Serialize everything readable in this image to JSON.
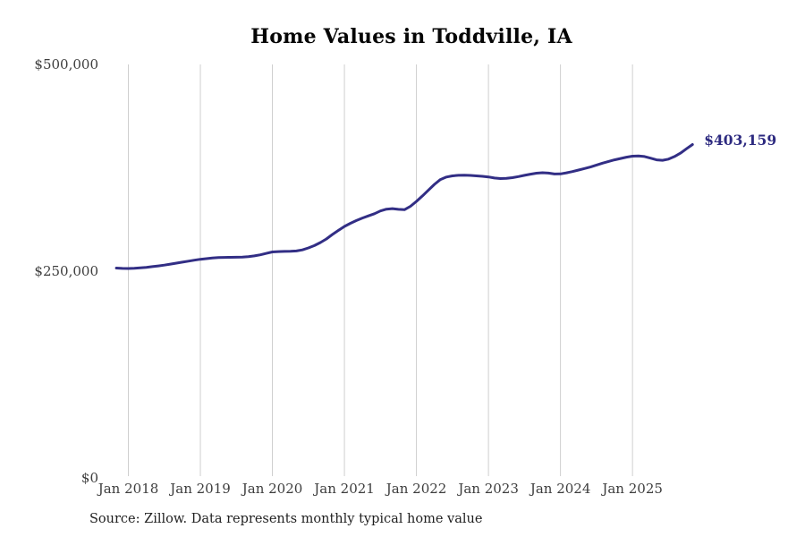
{
  "title": "Home Values in Toddville, IA",
  "source_note": "Source: Zillow. Data represents monthly typical home value",
  "end_label": "$403,159",
  "colors": {
    "background": "#ffffff",
    "line": "#322e85",
    "end_label": "#2d2a80",
    "gridline": "#cfcfcf",
    "axis_text": "#3d3d3d",
    "title_text": "#050505",
    "source_text": "#1f1f1f"
  },
  "chart_data": {
    "type": "line",
    "title": "Home Values in Toddville, IA",
    "xlabel": "",
    "ylabel": "",
    "ylim": [
      0,
      500000
    ],
    "grid": "vertical-only",
    "legend": "none",
    "frequency": "monthly",
    "unit": "USD",
    "last_value": 403159,
    "last_value_label": "$403,159",
    "y_ticks": [
      {
        "value": 0,
        "label": "$0"
      },
      {
        "value": 250000,
        "label": "$250,000"
      },
      {
        "value": 500000,
        "label": "$500,000"
      }
    ],
    "x_ticks": [
      {
        "month": "2018-01",
        "label": "Jan 2018"
      },
      {
        "month": "2019-01",
        "label": "Jan 2019"
      },
      {
        "month": "2020-01",
        "label": "Jan 2020"
      },
      {
        "month": "2021-01",
        "label": "Jan 2021"
      },
      {
        "month": "2022-01",
        "label": "Jan 2022"
      },
      {
        "month": "2023-01",
        "label": "Jan 2023"
      },
      {
        "month": "2024-01",
        "label": "Jan 2024"
      },
      {
        "month": "2025-01",
        "label": "Jan 2025"
      }
    ],
    "months": [
      "2017-11",
      "2017-12",
      "2018-01",
      "2018-02",
      "2018-03",
      "2018-04",
      "2018-05",
      "2018-06",
      "2018-07",
      "2018-08",
      "2018-09",
      "2018-10",
      "2018-11",
      "2018-12",
      "2019-01",
      "2019-02",
      "2019-03",
      "2019-04",
      "2019-05",
      "2019-06",
      "2019-07",
      "2019-08",
      "2019-09",
      "2019-10",
      "2019-11",
      "2019-12",
      "2020-01",
      "2020-02",
      "2020-03",
      "2020-04",
      "2020-05",
      "2020-06",
      "2020-07",
      "2020-08",
      "2020-09",
      "2020-10",
      "2020-11",
      "2020-12",
      "2021-01",
      "2021-02",
      "2021-03",
      "2021-04",
      "2021-05",
      "2021-06",
      "2021-07",
      "2021-08",
      "2021-09",
      "2021-10",
      "2021-11",
      "2021-12",
      "2022-01",
      "2022-02",
      "2022-03",
      "2022-04",
      "2022-05",
      "2022-06",
      "2022-07",
      "2022-08",
      "2022-09",
      "2022-10",
      "2022-11",
      "2022-12",
      "2023-01",
      "2023-02",
      "2023-03",
      "2023-04",
      "2023-05",
      "2023-06",
      "2023-07",
      "2023-08",
      "2023-09",
      "2023-10",
      "2023-11",
      "2023-12",
      "2024-01",
      "2024-02",
      "2024-03",
      "2024-04",
      "2024-05",
      "2024-06",
      "2024-07",
      "2024-08",
      "2024-09",
      "2024-10",
      "2024-11",
      "2024-12",
      "2025-01",
      "2025-02",
      "2025-03",
      "2025-04",
      "2025-05",
      "2025-06",
      "2025-07",
      "2025-08",
      "2025-09",
      "2025-10",
      "2025-11"
    ],
    "values": [
      253800,
      253400,
      253300,
      253500,
      254000,
      254700,
      255500,
      256400,
      257400,
      258500,
      259700,
      260900,
      262100,
      263300,
      264400,
      265200,
      265900,
      266400,
      266700,
      266800,
      266900,
      267100,
      267600,
      268500,
      269800,
      271500,
      273300,
      273700,
      273900,
      274000,
      274500,
      275800,
      278100,
      281000,
      284600,
      289000,
      294400,
      299300,
      304100,
      307900,
      311300,
      314300,
      316900,
      319500,
      322800,
      325000,
      325700,
      324800,
      324300,
      328500,
      334400,
      341000,
      348000,
      355000,
      360800,
      363900,
      365300,
      365900,
      366100,
      365800,
      365300,
      364700,
      364000,
      362700,
      362000,
      362200,
      363100,
      364400,
      365900,
      367300,
      368500,
      369000,
      368600,
      367500,
      367600,
      368900,
      370500,
      372300,
      374100,
      376000,
      378400,
      380600,
      382700,
      384600,
      386300,
      387900,
      389100,
      389300,
      388600,
      386700,
      384600,
      384100,
      385500,
      388600,
      392800,
      398000,
      403159
    ]
  }
}
